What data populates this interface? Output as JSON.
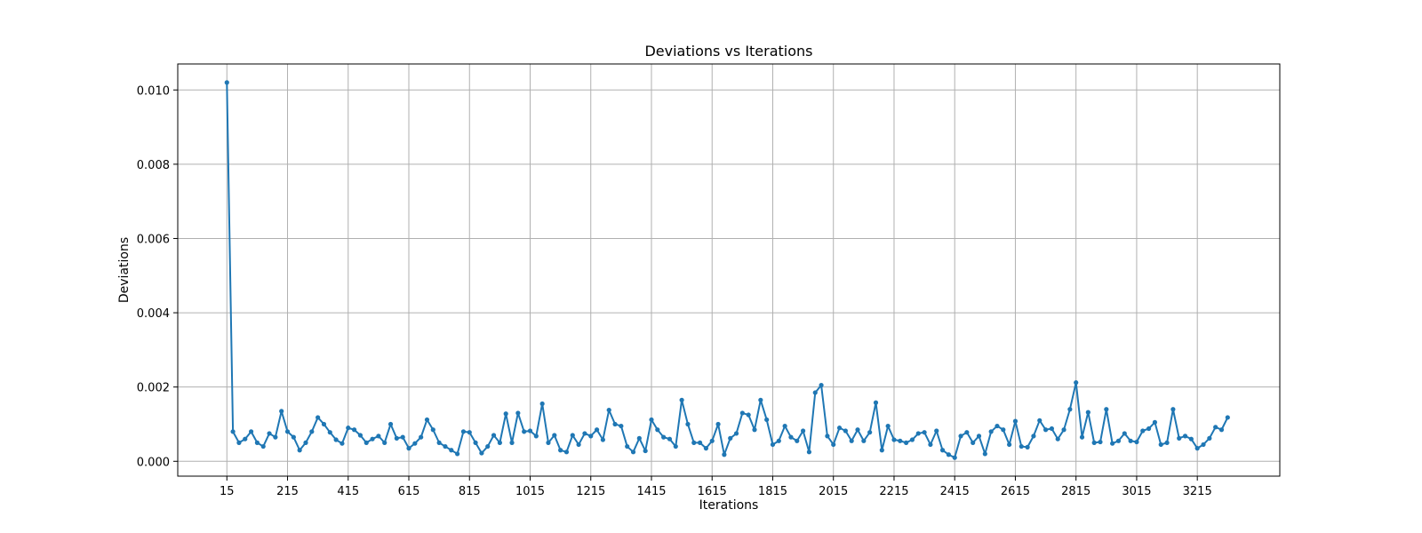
{
  "chart_data": {
    "type": "line",
    "title": "Deviations vs Iterations",
    "xlabel": "Iterations",
    "ylabel": "Deviations",
    "xlim": [
      -147,
      3487
    ],
    "ylim": [
      -0.0004,
      0.0107
    ],
    "xticks": [
      15,
      215,
      415,
      615,
      815,
      1015,
      1215,
      1415,
      1615,
      1815,
      2015,
      2215,
      2415,
      2615,
      2815,
      3015,
      3215
    ],
    "xtick_labels": [
      "15",
      "215",
      "415",
      "615",
      "815",
      "1015",
      "1215",
      "1415",
      "1615",
      "1815",
      "2015",
      "2215",
      "2415",
      "2615",
      "2815",
      "3015",
      "3215"
    ],
    "yticks": [
      0.0,
      0.002,
      0.004,
      0.006,
      0.008,
      0.01
    ],
    "ytick_labels": [
      "0.000",
      "0.002",
      "0.004",
      "0.006",
      "0.008",
      "0.010"
    ],
    "grid": true,
    "color": "#1f77b4",
    "x_start": 15,
    "x_step": 20,
    "series": [
      {
        "values": [
          0.0102,
          0.0008,
          0.0005,
          0.0006,
          0.0008,
          0.0005,
          0.0004,
          0.00075,
          0.00065,
          0.00135,
          0.0008,
          0.00065,
          0.0003,
          0.0005,
          0.0008,
          0.00118,
          0.001,
          0.00078,
          0.00058,
          0.00048,
          0.0009,
          0.00085,
          0.0007,
          0.0005,
          0.0006,
          0.00068,
          0.0005,
          0.001,
          0.00062,
          0.00065,
          0.00035,
          0.00048,
          0.00065,
          0.00112,
          0.00085,
          0.0005,
          0.0004,
          0.0003,
          0.0002,
          0.0008,
          0.00078,
          0.0005,
          0.00022,
          0.0004,
          0.0007,
          0.0005,
          0.00128,
          0.0005,
          0.0013,
          0.0008,
          0.00082,
          0.00068,
          0.00155,
          0.0005,
          0.0007,
          0.0003,
          0.00025,
          0.0007,
          0.00045,
          0.00075,
          0.00068,
          0.00085,
          0.00058,
          0.00138,
          0.001,
          0.00095,
          0.0004,
          0.00025,
          0.00062,
          0.00028,
          0.00112,
          0.00085,
          0.00065,
          0.0006,
          0.0004,
          0.00165,
          0.001,
          0.0005,
          0.0005,
          0.00035,
          0.00055,
          0.001,
          0.00018,
          0.00062,
          0.00075,
          0.0013,
          0.00125,
          0.00085,
          0.00165,
          0.00112,
          0.00045,
          0.00055,
          0.00095,
          0.00065,
          0.00055,
          0.00082,
          0.00025,
          0.00185,
          0.00205,
          0.00068,
          0.00045,
          0.0009,
          0.00082,
          0.00055,
          0.00085,
          0.00055,
          0.00078,
          0.00158,
          0.0003,
          0.00095,
          0.00058,
          0.00055,
          0.0005,
          0.00058,
          0.00075,
          0.00078,
          0.00045,
          0.00082,
          0.0003,
          0.00018,
          0.0001,
          0.00068,
          0.00078,
          0.0005,
          0.00068,
          0.0002,
          0.0008,
          0.00095,
          0.00085,
          0.00045,
          0.00108,
          0.0004,
          0.00038,
          0.00068,
          0.0011,
          0.00085,
          0.00088,
          0.0006,
          0.00085,
          0.0014,
          0.00212,
          0.00065,
          0.00132,
          0.0005,
          0.00052,
          0.0014,
          0.00048,
          0.00055,
          0.00075,
          0.00055,
          0.00052,
          0.00082,
          0.00088,
          0.00105,
          0.00045,
          0.0005,
          0.0014,
          0.00062,
          0.00068,
          0.0006,
          0.00035,
          0.00045,
          0.00062,
          0.00092,
          0.00085,
          0.00118
        ]
      }
    ]
  }
}
